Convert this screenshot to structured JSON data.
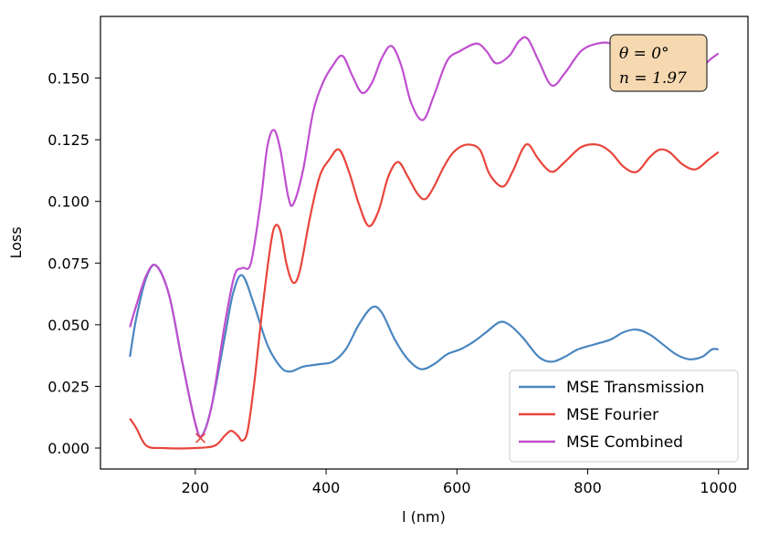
{
  "chart_data": {
    "type": "line",
    "title": "",
    "xlabel": "l (nm)",
    "ylabel": "Loss",
    "xlim": [
      55,
      1045
    ],
    "ylim": [
      -0.0085,
      0.175
    ],
    "xticks": [
      200,
      400,
      600,
      800,
      1000
    ],
    "xtick_labels": [
      "200",
      "400",
      "600",
      "800",
      "1000"
    ],
    "yticks": [
      0.0,
      0.025,
      0.05,
      0.075,
      0.1,
      0.125,
      0.15
    ],
    "ytick_labels": [
      "0.000",
      "0.025",
      "0.050",
      "0.075",
      "0.100",
      "0.125",
      "0.150"
    ],
    "grid": false,
    "legend_position": "lower-right",
    "annotation": {
      "line1": "θ = 0°",
      "line2": "n = 1.97"
    },
    "marker": {
      "symbol": "x",
      "x": 208,
      "y": 0.004,
      "color": "#e8453c"
    },
    "series": [
      {
        "name": "MSE Transmission",
        "color": "#4a86c0",
        "points": [
          [
            100,
            0.037
          ],
          [
            110,
            0.053
          ],
          [
            125,
            0.069
          ],
          [
            140,
            0.074
          ],
          [
            160,
            0.062
          ],
          [
            180,
            0.035
          ],
          [
            200,
            0.01
          ],
          [
            210,
            0.005
          ],
          [
            225,
            0.017
          ],
          [
            245,
            0.045
          ],
          [
            258,
            0.063
          ],
          [
            272,
            0.07
          ],
          [
            290,
            0.058
          ],
          [
            310,
            0.042
          ],
          [
            330,
            0.033
          ],
          [
            345,
            0.031
          ],
          [
            365,
            0.033
          ],
          [
            390,
            0.034
          ],
          [
            410,
            0.035
          ],
          [
            430,
            0.04
          ],
          [
            450,
            0.05
          ],
          [
            470,
            0.057
          ],
          [
            485,
            0.055
          ],
          [
            505,
            0.044
          ],
          [
            525,
            0.036
          ],
          [
            545,
            0.032
          ],
          [
            565,
            0.034
          ],
          [
            585,
            0.038
          ],
          [
            605,
            0.04
          ],
          [
            625,
            0.043
          ],
          [
            645,
            0.047
          ],
          [
            665,
            0.051
          ],
          [
            680,
            0.05
          ],
          [
            700,
            0.045
          ],
          [
            725,
            0.037
          ],
          [
            745,
            0.035
          ],
          [
            765,
            0.037
          ],
          [
            785,
            0.04
          ],
          [
            810,
            0.042
          ],
          [
            835,
            0.044
          ],
          [
            855,
            0.047
          ],
          [
            875,
            0.048
          ],
          [
            895,
            0.046
          ],
          [
            915,
            0.042
          ],
          [
            935,
            0.038
          ],
          [
            955,
            0.036
          ],
          [
            975,
            0.037
          ],
          [
            990,
            0.04
          ],
          [
            1000,
            0.04
          ]
        ]
      },
      {
        "name": "MSE Fourier",
        "color": "#e8453c",
        "points": [
          [
            100,
            0.012
          ],
          [
            110,
            0.008
          ],
          [
            125,
            0.001
          ],
          [
            150,
            0.0
          ],
          [
            200,
            0.0
          ],
          [
            230,
            0.001
          ],
          [
            245,
            0.005
          ],
          [
            255,
            0.007
          ],
          [
            265,
            0.005
          ],
          [
            272,
            0.003
          ],
          [
            280,
            0.007
          ],
          [
            290,
            0.026
          ],
          [
            302,
            0.055
          ],
          [
            315,
            0.082
          ],
          [
            322,
            0.09
          ],
          [
            330,
            0.088
          ],
          [
            340,
            0.074
          ],
          [
            350,
            0.067
          ],
          [
            360,
            0.072
          ],
          [
            375,
            0.093
          ],
          [
            390,
            0.11
          ],
          [
            405,
            0.117
          ],
          [
            420,
            0.121
          ],
          [
            435,
            0.112
          ],
          [
            450,
            0.099
          ],
          [
            465,
            0.09
          ],
          [
            480,
            0.096
          ],
          [
            495,
            0.11
          ],
          [
            510,
            0.116
          ],
          [
            525,
            0.11
          ],
          [
            540,
            0.103
          ],
          [
            552,
            0.101
          ],
          [
            565,
            0.106
          ],
          [
            580,
            0.114
          ],
          [
            595,
            0.12
          ],
          [
            615,
            0.123
          ],
          [
            635,
            0.121
          ],
          [
            650,
            0.111
          ],
          [
            670,
            0.106
          ],
          [
            685,
            0.112
          ],
          [
            700,
            0.121
          ],
          [
            710,
            0.123
          ],
          [
            725,
            0.117
          ],
          [
            745,
            0.112
          ],
          [
            765,
            0.116
          ],
          [
            790,
            0.122
          ],
          [
            815,
            0.123
          ],
          [
            835,
            0.12
          ],
          [
            855,
            0.114
          ],
          [
            875,
            0.112
          ],
          [
            895,
            0.118
          ],
          [
            910,
            0.121
          ],
          [
            925,
            0.12
          ],
          [
            945,
            0.115
          ],
          [
            965,
            0.113
          ],
          [
            985,
            0.117
          ],
          [
            1000,
            0.12
          ]
        ]
      },
      {
        "name": "MSE Combined",
        "color": "#bf4fcf",
        "points": [
          [
            100,
            0.049
          ],
          [
            110,
            0.058
          ],
          [
            125,
            0.07
          ],
          [
            140,
            0.074
          ],
          [
            160,
            0.062
          ],
          [
            180,
            0.035
          ],
          [
            200,
            0.01
          ],
          [
            210,
            0.005
          ],
          [
            225,
            0.017
          ],
          [
            245,
            0.05
          ],
          [
            260,
            0.07
          ],
          [
            272,
            0.073
          ],
          [
            285,
            0.075
          ],
          [
            300,
            0.1
          ],
          [
            310,
            0.122
          ],
          [
            320,
            0.129
          ],
          [
            330,
            0.121
          ],
          [
            342,
            0.102
          ],
          [
            350,
            0.099
          ],
          [
            365,
            0.113
          ],
          [
            380,
            0.136
          ],
          [
            395,
            0.148
          ],
          [
            410,
            0.155
          ],
          [
            425,
            0.159
          ],
          [
            440,
            0.151
          ],
          [
            455,
            0.144
          ],
          [
            470,
            0.148
          ],
          [
            485,
            0.158
          ],
          [
            500,
            0.163
          ],
          [
            515,
            0.155
          ],
          [
            530,
            0.14
          ],
          [
            548,
            0.133
          ],
          [
            565,
            0.143
          ],
          [
            585,
            0.157
          ],
          [
            605,
            0.161
          ],
          [
            630,
            0.164
          ],
          [
            645,
            0.161
          ],
          [
            660,
            0.156
          ],
          [
            680,
            0.159
          ],
          [
            695,
            0.165
          ],
          [
            708,
            0.166
          ],
          [
            725,
            0.157
          ],
          [
            745,
            0.147
          ],
          [
            765,
            0.152
          ],
          [
            790,
            0.161
          ],
          [
            815,
            0.164
          ],
          [
            835,
            0.164
          ],
          [
            850,
            0.16
          ],
          [
            870,
            0.155
          ],
          [
            890,
            0.16
          ],
          [
            910,
            0.163
          ],
          [
            930,
            0.16
          ],
          [
            950,
            0.152
          ],
          [
            965,
            0.151
          ],
          [
            985,
            0.157
          ],
          [
            1000,
            0.16
          ]
        ]
      }
    ]
  }
}
